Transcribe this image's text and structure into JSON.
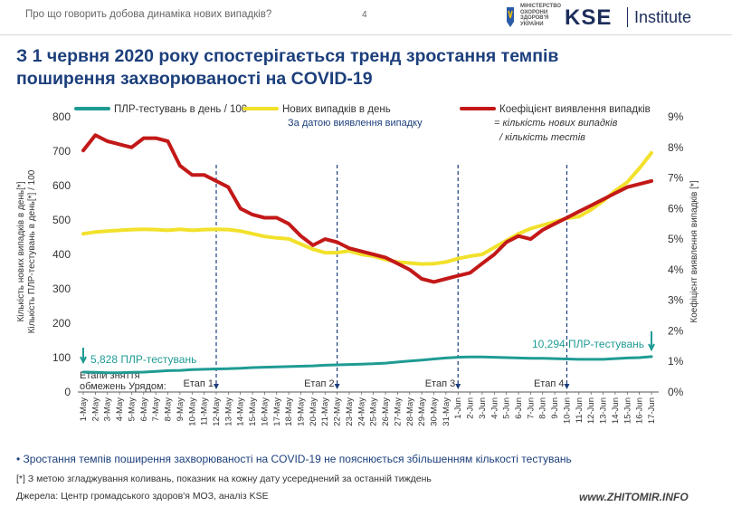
{
  "header": {
    "question": "Про що говорить добова динаміка нових випадків?",
    "page_number": "4",
    "ministry_logo_text": [
      "МІНІСТЕРСТВО",
      "ОХОРОНИ",
      "ЗДОРОВ'Я",
      "УКРАЇНИ"
    ],
    "kse_logo": "KSE",
    "kse_institute": "Institute"
  },
  "headline_lines": [
    "З 1 червня 2020 року спостерігається тренд зростання темпів",
    "поширення захворюваності на COVID-19"
  ],
  "bullet": "Зростання темпів поширення захворюваності на COVID-19 не пояснюється збільшенням кількості тестувань",
  "footnote": "[*] З метою згладжування коливань, показник на кожну дату усереднений за останній тиждень",
  "source": "Джерела: Центр громадського здоров'я МОЗ, аналіз KSE",
  "watermark": "www.ZHITOMIR.INFO",
  "colors": {
    "tests": "#1f9b94",
    "cases": "#f2e12b",
    "ratio": "#c31818",
    "headline": "#1c3f7c",
    "brand": "#1c2d5a"
  },
  "chart_data": {
    "type": "line",
    "ylabel_left": [
      "Кількість нових випадків в день[*]",
      "Кількість ПЛР-тестувань в день[*] / 100"
    ],
    "ylabel_right": "Коефіцієнт виявлення випадків [*]",
    "ylim_left": [
      0,
      800
    ],
    "yticks_left": [
      0,
      100,
      200,
      300,
      400,
      500,
      600,
      700,
      800
    ],
    "ylim_right": [
      0,
      9
    ],
    "yticks_right": [
      "0%",
      "1%",
      "2%",
      "3%",
      "4%",
      "5%",
      "6%",
      "7%",
      "8%",
      "9%"
    ],
    "grid": false,
    "categories": [
      "1-May",
      "2-May",
      "3-May",
      "4-May",
      "5-May",
      "6-May",
      "7-May",
      "8-May",
      "9-May",
      "10-May",
      "11-May",
      "12-May",
      "13-May",
      "14-May",
      "15-May",
      "16-May",
      "17-May",
      "18-May",
      "19-May",
      "20-May",
      "21-May",
      "22-May",
      "23-May",
      "24-May",
      "25-May",
      "26-May",
      "27-May",
      "28-May",
      "29-May",
      "30-May",
      "31-May",
      "1-Jun",
      "2-Jun",
      "3-Jun",
      "4-Jun",
      "5-Jun",
      "6-Jun",
      "7-Jun",
      "8-Jun",
      "9-Jun",
      "10-Jun",
      "11-Jun",
      "12-Jun",
      "13-Jun",
      "14-Jun",
      "15-Jun",
      "16-Jun",
      "17-Jun"
    ],
    "series": [
      {
        "name": "ПЛР-тестувань в день / 100",
        "axis": "left",
        "values": [
          58,
          57,
          56,
          56,
          57,
          58,
          60,
          62,
          63,
          65,
          66,
          67,
          68,
          69,
          71,
          72,
          73,
          74,
          75,
          76,
          78,
          79,
          80,
          81,
          82,
          84,
          87,
          90,
          93,
          96,
          99,
          101,
          102,
          102,
          101,
          100,
          99,
          98,
          98,
          97,
          96,
          95,
          95,
          95,
          97,
          99,
          100,
          103
        ]
      },
      {
        "name": "Нових випадків в день",
        "axis": "left",
        "subtitle": "За датою виявлення випадку",
        "values": [
          460,
          465,
          468,
          470,
          472,
          473,
          472,
          470,
          473,
          470,
          472,
          473,
          472,
          468,
          460,
          452,
          448,
          445,
          430,
          415,
          405,
          405,
          410,
          400,
          395,
          385,
          378,
          375,
          372,
          373,
          378,
          388,
          395,
          400,
          420,
          440,
          460,
          475,
          485,
          495,
          505,
          510,
          530,
          555,
          585,
          610,
          650,
          695
        ]
      },
      {
        "name": "Коефіцієнт виявлення випадків",
        "axis": "right",
        "subtitle": [
          "= кількість нових випадків",
          "/ кількість тестів"
        ],
        "values": [
          7.9,
          8.4,
          8.2,
          8.1,
          8.0,
          8.3,
          8.3,
          8.2,
          7.4,
          7.1,
          7.1,
          6.9,
          6.7,
          6.0,
          5.8,
          5.7,
          5.7,
          5.5,
          5.1,
          4.8,
          5.0,
          4.9,
          4.7,
          4.6,
          4.5,
          4.4,
          4.2,
          4.0,
          3.7,
          3.6,
          3.7,
          3.8,
          3.9,
          4.2,
          4.5,
          4.9,
          5.1,
          5.0,
          5.3,
          5.5,
          5.7,
          5.9,
          6.1,
          6.3,
          6.5,
          6.7,
          6.8,
          6.9
        ]
      }
    ],
    "annotations": [
      {
        "text": "5,828 ПЛР-тестувань",
        "at": "1-May"
      },
      {
        "text": "10,294 ПЛР-тестувань",
        "at": "17-Jun"
      }
    ],
    "stages": [
      {
        "label": "Етап 1",
        "at": "12-May"
      },
      {
        "label": "Етап 2",
        "at": "22-May"
      },
      {
        "label": "Етап 3",
        "at": "1-Jun"
      },
      {
        "label": "Етап 4",
        "at": "10-Jun"
      }
    ],
    "stages_caption": [
      "Етапи зняття",
      "обмежень Урядом:"
    ]
  }
}
